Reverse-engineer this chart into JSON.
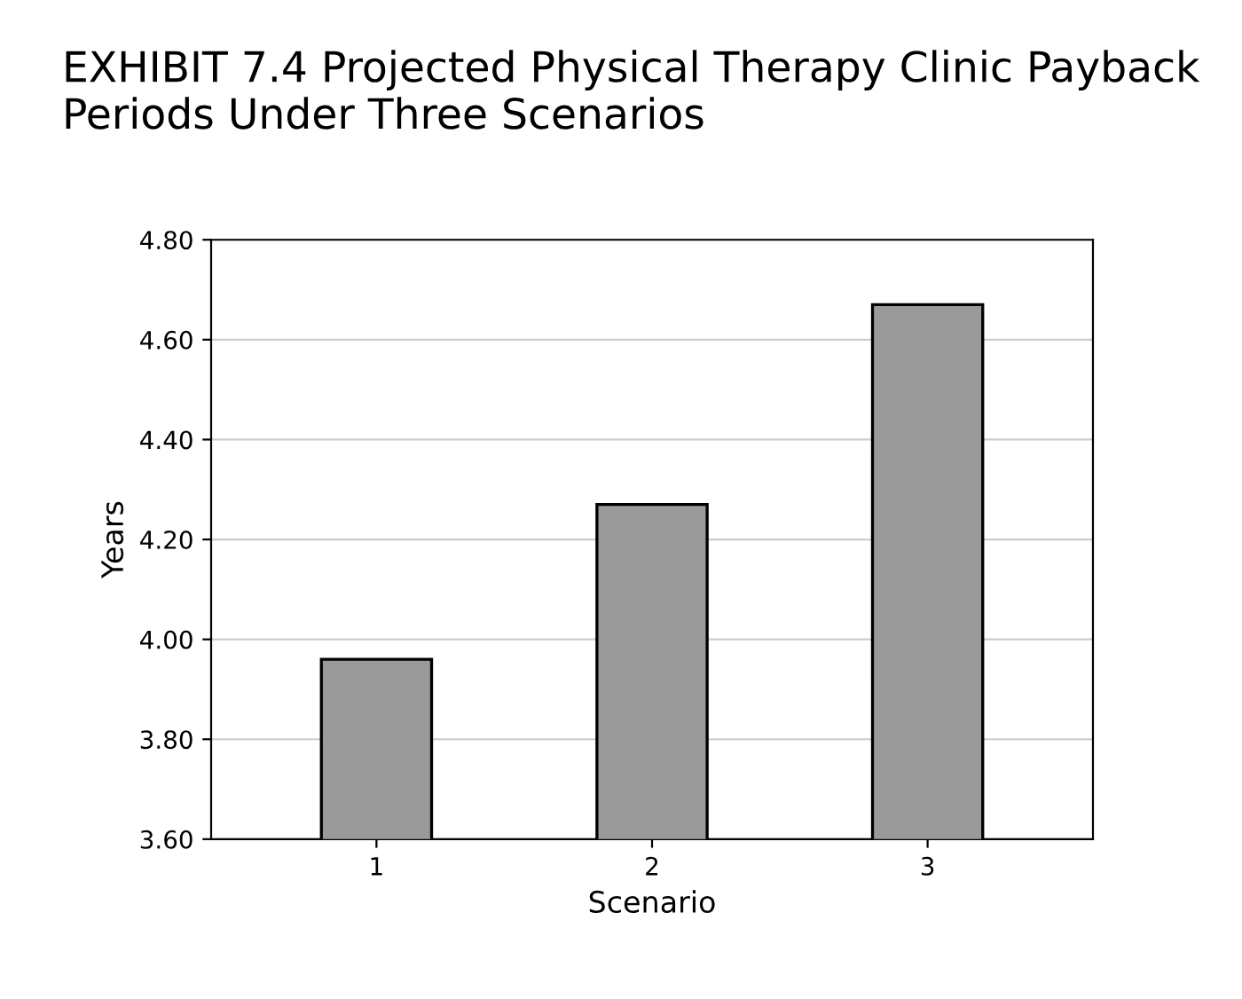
{
  "chart_data": {
    "type": "bar",
    "title": "EXHIBIT 7.4 Projected Physical Therapy Clinic Payback Periods Under Three Scenarios",
    "xlabel": "Scenario",
    "ylabel": "Years",
    "categories": [
      "1",
      "2",
      "3"
    ],
    "values": [
      3.96,
      4.27,
      4.67
    ],
    "color": "#9a9a9a",
    "ylim": [
      3.6,
      4.8
    ],
    "yticks": [
      {
        "value": 3.6,
        "label": "3.60"
      },
      {
        "value": 3.8,
        "label": "3.80"
      },
      {
        "value": 4.0,
        "label": "4.00"
      },
      {
        "value": 4.2,
        "label": "4.20"
      },
      {
        "value": 4.4,
        "label": "4.40"
      },
      {
        "value": 4.6,
        "label": "4.60"
      },
      {
        "value": 4.8,
        "label": "4.80"
      }
    ],
    "grid": "y"
  }
}
